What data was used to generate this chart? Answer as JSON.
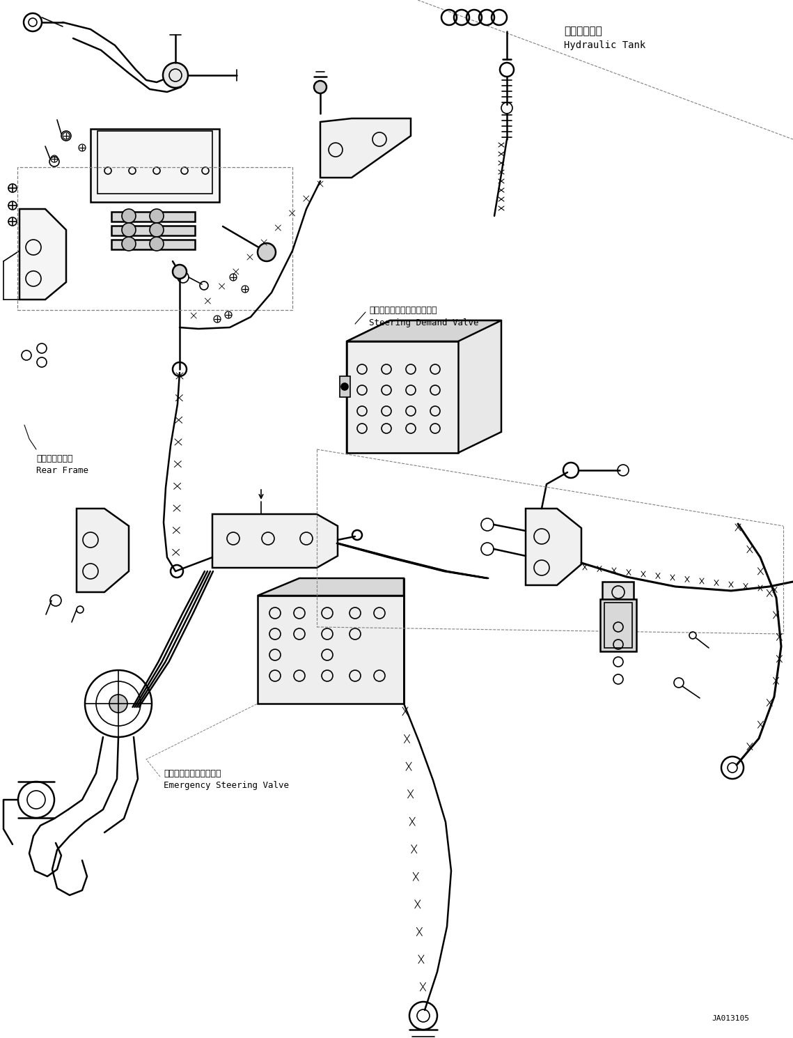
{
  "bg_color": "#ffffff",
  "line_color": "#000000",
  "line_width": 1.2,
  "figsize": [
    11.39,
    14.9
  ],
  "dpi": 100,
  "labels": {
    "hydraulic_tank_jp": "作動油タンク",
    "hydraulic_tank_en": "Hydraulic Tank",
    "steering_demand_jp": "ステアリングデマンドバルブ",
    "steering_demand_en": "Steering Demand Valve",
    "rear_frame_jp": "リヤーフレーム",
    "rear_frame_en": "Rear Frame",
    "emergency_jp": "緊急ステアリングバルブ",
    "emergency_en": "Emergency Steering Valve",
    "part_number": "JA013105"
  }
}
